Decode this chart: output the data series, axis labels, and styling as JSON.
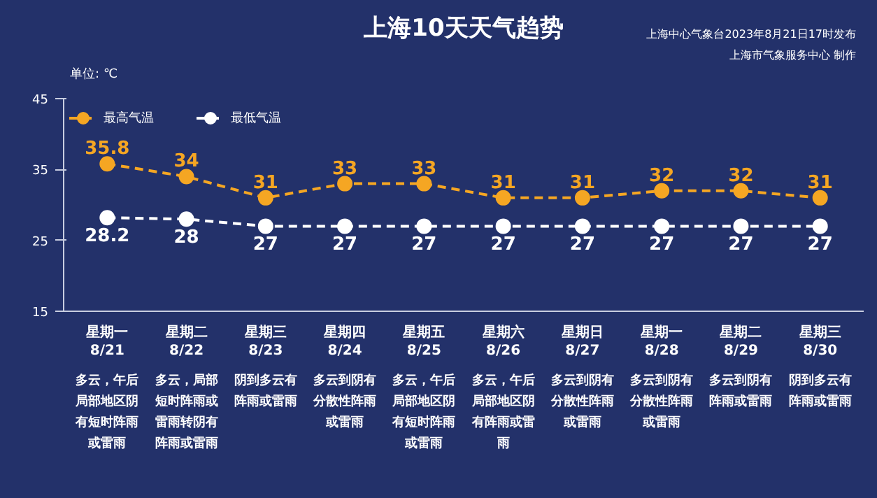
{
  "chart_data": {
    "type": "line",
    "title": "上海10天天气趋势",
    "ylabel": "单位: ℃",
    "categories": [
      "星期一\n8/21",
      "星期二\n8/22",
      "星期三\n8/23",
      "星期四\n8/24",
      "星期五\n8/25",
      "星期六\n8/26",
      "星期日\n8/27",
      "星期一\n8/28",
      "星期二\n8/29",
      "星期三\n8/30"
    ],
    "series": [
      {
        "name": "最高气温",
        "color": "#f5a623",
        "values": [
          35.8,
          34,
          31,
          33,
          33,
          31,
          31,
          32,
          32,
          31
        ]
      },
      {
        "name": "最低气温",
        "color": "#ffffff",
        "values": [
          28.2,
          28,
          27,
          27,
          27,
          27,
          27,
          27,
          27,
          27
        ]
      }
    ],
    "ylim": [
      15,
      45
    ],
    "yticks": [
      15,
      25,
      35,
      45
    ],
    "grid": false,
    "legend": "top left",
    "marker": "circle",
    "line_style": "dashed",
    "data_labels": true,
    "annotations": [
      "上海中心气象台2023年8月21日17时发布",
      "上海市气象服务中心 制作",
      "多云，午后局部地区阴有短时阵雨或雷雨",
      "多云，局部短时阵雨或雷雨转阴有阵雨或雷雨",
      "阴到多云有阵雨或雷雨",
      "多云到阴有分散性阵雨或雷雨",
      "多云，午后局部地区阴有短时阵雨或雷雨",
      "多云，午后局部地区阴有阵雨或雷雨",
      "多云到阴有分散性阵雨或雷雨",
      "多云到阴有分散性阵雨或雷雨",
      "多云到阴有阵雨或雷雨",
      "阴到多云有阵雨或雷雨"
    ]
  }
}
